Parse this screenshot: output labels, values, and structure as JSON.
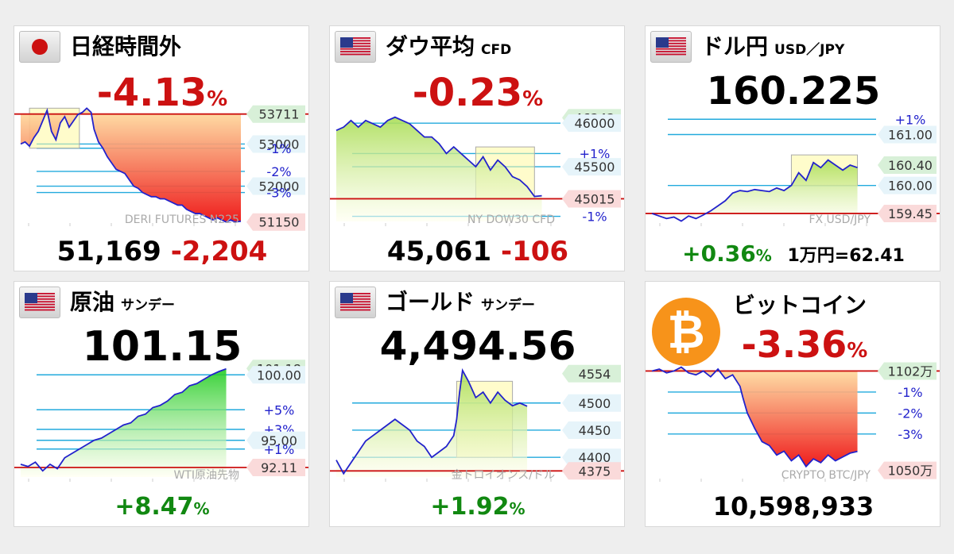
{
  "colors": {
    "red": "#cc1111",
    "green": "#118811",
    "blue": "#2222cc",
    "grid": "#22aadd",
    "redline": "#cc1111"
  },
  "panels": [
    {
      "title": "日経時間外",
      "sub": "",
      "flag": "japan-flag",
      "main": "-4.13",
      "main_unit": "%",
      "main_color": "red",
      "foot_value": "51,169",
      "foot_change": "-2,204",
      "foot_change_color": "red",
      "watermark": "DERI FUTURES N225",
      "labels": [
        {
          "text": "53711",
          "style": "green",
          "y": 53711
        },
        {
          "text": "53000",
          "style": "blue",
          "y": 53000
        },
        {
          "text": "-1%",
          "style": "text",
          "y": 52900
        },
        {
          "text": "-2%",
          "style": "text",
          "y": 52350
        },
        {
          "text": "52000",
          "style": "blue",
          "y": 52000
        },
        {
          "text": "-3%",
          "style": "text",
          "y": 51850
        },
        {
          "text": "51150",
          "style": "red",
          "y": 51150
        }
      ]
    },
    {
      "title": "ダウ平均",
      "sub": "CFD",
      "flag": "us-flag",
      "main": "-0.23",
      "main_unit": "%",
      "main_color": "red",
      "foot_value": "45,061",
      "foot_change": "-106",
      "foot_change_color": "red",
      "watermark": "NY DOW30 CFD",
      "labels": [
        {
          "text": "46242",
          "style": "green",
          "y": 46242
        },
        {
          "text": "46000",
          "style": "blue",
          "y": 46160
        },
        {
          "text": "+1%",
          "style": "text",
          "y": 45700
        },
        {
          "text": "45500",
          "style": "blue",
          "y": 45500
        },
        {
          "text": "45015",
          "style": "red",
          "y": 45015
        },
        {
          "text": "-1%",
          "style": "text",
          "y": 44750
        }
      ]
    },
    {
      "title": "ドル円",
      "sub": "USD／JPY",
      "flag": "us-flag",
      "main": "160.225",
      "main_color": "black",
      "foot_pct": "+0.36",
      "foot_pct_unit": "%",
      "foot_note": "1万円=62.41",
      "watermark": "FX USD/JPY",
      "labels": [
        {
          "text": "+1%",
          "style": "text",
          "y": 161.3
        },
        {
          "text": "161.00",
          "style": "blue",
          "y": 161.0
        },
        {
          "text": "160.40",
          "style": "green",
          "y": 160.4
        },
        {
          "text": "160.00",
          "style": "blue",
          "y": 160.0
        },
        {
          "text": "159.45",
          "style": "red",
          "y": 159.45
        }
      ]
    },
    {
      "title": "原油",
      "sub": "サンデー",
      "flag": "us-flag",
      "main": "101.15",
      "main_color": "black",
      "foot_pct": "+8.47",
      "foot_pct_unit": "%",
      "watermark": "WTI原油先物",
      "labels": [
        {
          "text": "101.18",
          "style": "green",
          "y": 101.18
        },
        {
          "text": "100.00",
          "style": "blue",
          "y": 100.6
        },
        {
          "text": "+5%",
          "style": "text",
          "y": 97.4
        },
        {
          "text": "+3%",
          "style": "text",
          "y": 95.6
        },
        {
          "text": "95.00",
          "style": "blue",
          "y": 94.6
        },
        {
          "text": "+1%",
          "style": "text",
          "y": 93.8
        },
        {
          "text": "92.11",
          "style": "red",
          "y": 92.11
        }
      ]
    },
    {
      "title": "ゴールド",
      "sub": "サンデー",
      "flag": "us-flag",
      "main": "4,494.56",
      "main_color": "black",
      "foot_pct": "+1.92",
      "foot_pct_unit": "%",
      "watermark": "金トロイオンス/ドル",
      "labels": [
        {
          "text": "4554",
          "style": "green",
          "y": 4554
        },
        {
          "text": "4500",
          "style": "blue",
          "y": 4500
        },
        {
          "text": "4450",
          "style": "blue",
          "y": 4450
        },
        {
          "text": "4400",
          "style": "blue",
          "y": 4400
        },
        {
          "text": "4375",
          "style": "red",
          "y": 4375
        }
      ]
    },
    {
      "title": "ビットコイン",
      "sub": "",
      "flag": "bitcoin-logo",
      "main": "-3.36",
      "main_unit": "%",
      "main_color": "red",
      "foot_value": "10,598,933",
      "watermark": "CRYPTO BTC/JPY",
      "labels": [
        {
          "text": "1102万",
          "style": "green",
          "y": 1102
        },
        {
          "text": "-1%",
          "style": "text",
          "y": 1091
        },
        {
          "text": "-2%",
          "style": "text",
          "y": 1080
        },
        {
          "text": "-3%",
          "style": "text",
          "y": 1069
        },
        {
          "text": "1050万",
          "style": "red",
          "y": 1050
        }
      ]
    }
  ],
  "btc_symbol": "₿",
  "chart_data": [
    {
      "type": "line",
      "title": "日経時間外",
      "ylim": [
        51050,
        53950
      ],
      "fill": "red",
      "refline": 53711,
      "box": {
        "x": [
          6,
          40
        ],
        "y": [
          52900,
          53850
        ]
      },
      "x": [
        0,
        3,
        6,
        9,
        12,
        15,
        18,
        21,
        24,
        27,
        30,
        33,
        36,
        39,
        42,
        45,
        48,
        50,
        53,
        56,
        59,
        62,
        65,
        68,
        71,
        74,
        77,
        80,
        83,
        86,
        89,
        92,
        95,
        98,
        101,
        104,
        107,
        110,
        113,
        116,
        119,
        122,
        125,
        128,
        131,
        134,
        137,
        140,
        143,
        146,
        150
      ],
      "values": [
        53000,
        53050,
        52950,
        53150,
        53300,
        53550,
        53800,
        53300,
        53100,
        53500,
        53650,
        53400,
        53550,
        53700,
        53750,
        53850,
        53750,
        53350,
        53050,
        52900,
        52700,
        52550,
        52400,
        52350,
        52300,
        52150,
        52000,
        51950,
        51850,
        51800,
        51750,
        51750,
        51700,
        51700,
        51650,
        51600,
        51550,
        51550,
        51450,
        51400,
        51350,
        51350,
        51300,
        51250,
        51200,
        51250,
        51200,
        51150,
        51200,
        51150,
        51169
      ]
    },
    {
      "type": "line",
      "title": "ダウ平均",
      "ylim": [
        44600,
        46450
      ],
      "fill": "green",
      "refline": 45015,
      "box": {
        "x": [
          95,
          135
        ],
        "y": [
          45015,
          45800
        ]
      },
      "x": [
        0,
        5,
        10,
        15,
        20,
        25,
        30,
        35,
        40,
        45,
        50,
        55,
        60,
        65,
        70,
        75,
        80,
        85,
        90,
        95,
        100,
        105,
        110,
        115,
        120,
        125,
        130,
        135,
        140
      ],
      "values": [
        46050,
        46100,
        46200,
        46100,
        46200,
        46150,
        46100,
        46200,
        46250,
        46200,
        46150,
        46050,
        45950,
        45950,
        45850,
        45700,
        45800,
        45700,
        45600,
        45500,
        45650,
        45450,
        45600,
        45500,
        45350,
        45300,
        45200,
        45050,
        45061
      ]
    },
    {
      "type": "line",
      "title": "ドル円",
      "ylim": [
        159.2,
        161.6
      ],
      "fill": "green",
      "refline": 159.45,
      "box": {
        "x": [
          95,
          140
        ],
        "y": [
          160.0,
          160.6
        ]
      },
      "x": [
        0,
        5,
        10,
        15,
        20,
        25,
        30,
        35,
        40,
        45,
        50,
        55,
        60,
        65,
        70,
        75,
        80,
        85,
        90,
        95,
        100,
        105,
        110,
        115,
        120,
        125,
        130,
        135,
        140
      ],
      "values": [
        159.45,
        159.4,
        159.35,
        159.38,
        159.3,
        159.4,
        159.35,
        159.42,
        159.5,
        159.6,
        159.7,
        159.85,
        159.9,
        159.88,
        159.92,
        159.9,
        159.88,
        159.95,
        159.9,
        160.0,
        160.25,
        160.1,
        160.45,
        160.35,
        160.5,
        160.4,
        160.3,
        160.4,
        160.35
      ]
    },
    {
      "type": "line",
      "title": "原油",
      "ylim": [
        90.8,
        102.0
      ],
      "fill": "green",
      "refline": 92.11,
      "x": [
        0,
        5,
        10,
        15,
        20,
        25,
        30,
        35,
        40,
        45,
        50,
        55,
        60,
        65,
        70,
        75,
        80,
        85,
        90,
        95,
        100,
        105,
        110,
        115,
        120,
        125,
        130,
        135,
        140
      ],
      "values": [
        92.4,
        92.2,
        92.6,
        91.8,
        92.4,
        92.0,
        93.0,
        93.4,
        93.8,
        94.2,
        94.6,
        94.8,
        95.2,
        95.6,
        96.0,
        96.2,
        96.8,
        97.0,
        97.6,
        97.8,
        98.2,
        98.8,
        99.0,
        99.6,
        99.8,
        100.2,
        100.6,
        100.9,
        101.15
      ]
    },
    {
      "type": "line",
      "title": "ゴールド",
      "ylim": [
        4355,
        4580
      ],
      "fill": "green",
      "refline": 4375,
      "box": {
        "x": [
          82,
          120
        ],
        "y": [
          4400,
          4540
        ]
      },
      "x": [
        0,
        5,
        10,
        15,
        20,
        25,
        30,
        35,
        40,
        45,
        50,
        55,
        60,
        65,
        70,
        75,
        80,
        82,
        84,
        86,
        90,
        95,
        100,
        105,
        110,
        115,
        120,
        125,
        130
      ],
      "values": [
        4395,
        4370,
        4390,
        4410,
        4430,
        4440,
        4450,
        4460,
        4470,
        4460,
        4450,
        4430,
        4420,
        4400,
        4410,
        4420,
        4440,
        4470,
        4520,
        4560,
        4540,
        4510,
        4520,
        4500,
        4520,
        4505,
        4495,
        4500,
        4494
      ]
    },
    {
      "type": "line",
      "title": "ビットコイン",
      "ylim": [
        1044,
        1108
      ],
      "fill": "red",
      "refline": 1102,
      "x": [
        0,
        5,
        10,
        15,
        20,
        25,
        30,
        35,
        40,
        45,
        50,
        55,
        60,
        62,
        65,
        70,
        75,
        80,
        85,
        90,
        95,
        100,
        105,
        110,
        115,
        120,
        125,
        130,
        135,
        140
      ],
      "values": [
        1102,
        1103,
        1101,
        1102,
        1104,
        1101,
        1100,
        1102,
        1099,
        1103,
        1098,
        1100,
        1094,
        1088,
        1080,
        1072,
        1065,
        1063,
        1058,
        1060,
        1055,
        1058,
        1052,
        1056,
        1054,
        1058,
        1055,
        1057,
        1059,
        1059.9
      ]
    }
  ]
}
